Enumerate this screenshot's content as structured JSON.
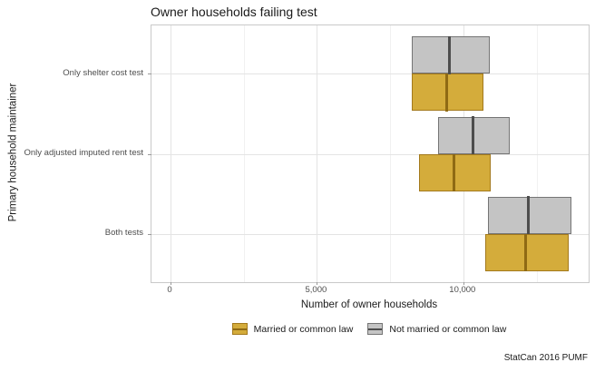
{
  "title": "Owner households failing test",
  "caption": "StatCan 2016 PUMF",
  "chart_data": {
    "type": "crossbar",
    "orientation": "horizontal",
    "title": "Owner households failing test",
    "xlabel": "Number of owner households",
    "ylabel": "Primary household maintainer",
    "categories": [
      "Only shelter cost test",
      "Only adjusted imputed rent test",
      "Both tests"
    ],
    "xlim": [
      -650,
      14280
    ],
    "x_major_ticks": [
      {
        "value": 0,
        "label": "0"
      },
      {
        "value": 5000,
        "label": "5,000"
      },
      {
        "value": 10000,
        "label": "10,000"
      }
    ],
    "x_minor_ticks": [
      2500,
      7500,
      12500
    ],
    "grid": true,
    "legend_position": "bottom",
    "series": [
      {
        "name": "Married or common law",
        "fill": "#D4AC3B",
        "stroke": "#A3791C",
        "median_color": "#8F6A14",
        "dodge": "below",
        "values": [
          {
            "min": 8250,
            "median": 9450,
            "max": 10700
          },
          {
            "min": 8500,
            "median": 9700,
            "max": 10950
          },
          {
            "min": 10750,
            "median": 12150,
            "max": 13600
          }
        ]
      },
      {
        "name": "Not married or common law",
        "fill": "#C4C4C4",
        "stroke": "#757575",
        "median_color": "#4D4D4D",
        "dodge": "above",
        "values": [
          {
            "min": 8250,
            "median": 9550,
            "max": 10900
          },
          {
            "min": 9150,
            "median": 10350,
            "max": 11600
          },
          {
            "min": 10850,
            "median": 12250,
            "max": 13700
          }
        ]
      }
    ],
    "source_note": "StatCan 2016 PUMF"
  }
}
